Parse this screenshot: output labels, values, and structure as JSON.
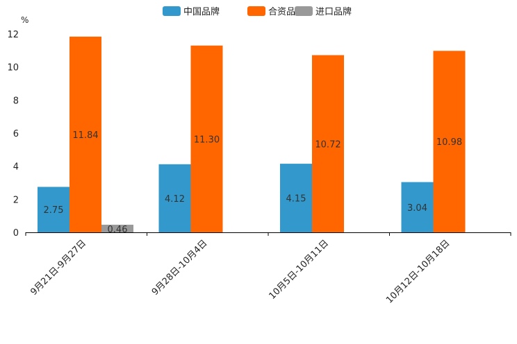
{
  "chart_data": {
    "type": "bar",
    "unit_label": "%",
    "categories": [
      "9月21日-9月27日",
      "9月28日-10月4日",
      "10月5日-10月11日",
      "10月12日-10月18日"
    ],
    "series": [
      {
        "name": "中国品牌",
        "color": "#3399cc",
        "values": [
          2.75,
          4.12,
          4.15,
          3.04
        ]
      },
      {
        "name": "合资品牌",
        "color": "#ff6600",
        "values": [
          11.84,
          11.3,
          10.72,
          10.98
        ]
      },
      {
        "name": "进口品牌",
        "color": "#999999",
        "values": [
          0.46,
          null,
          null,
          null
        ]
      }
    ],
    "ylim": [
      0,
      12
    ],
    "yticks": [
      0,
      2,
      4,
      6,
      8,
      10,
      12
    ],
    "legend_position": "top-center",
    "grid": false
  }
}
